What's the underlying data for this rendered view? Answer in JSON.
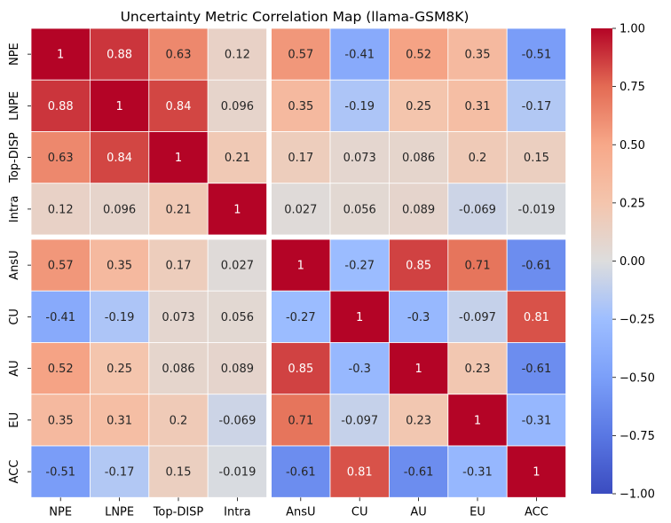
{
  "chart_data": {
    "type": "heatmap",
    "title": "Uncertainty Metric Correlation Map (llama-GSM8K)",
    "rows": [
      "NPE",
      "LNPE",
      "Top-DISP",
      "Intra",
      "AnsU",
      "CU",
      "AU",
      "EU",
      "ACC"
    ],
    "cols": [
      "NPE",
      "LNPE",
      "Top-DISP",
      "Intra",
      "AnsU",
      "CU",
      "AU",
      "EU",
      "ACC"
    ],
    "values": [
      [
        1,
        0.88,
        0.63,
        0.12,
        0.57,
        -0.41,
        0.52,
        0.35,
        -0.51
      ],
      [
        0.88,
        1,
        0.84,
        0.096,
        0.35,
        -0.19,
        0.25,
        0.31,
        -0.17
      ],
      [
        0.63,
        0.84,
        1,
        0.21,
        0.17,
        0.073,
        0.086,
        0.2,
        0.15
      ],
      [
        0.12,
        0.096,
        0.21,
        1,
        0.027,
        0.056,
        0.089,
        -0.069,
        -0.019
      ],
      [
        0.57,
        0.35,
        0.17,
        0.027,
        1,
        -0.27,
        0.85,
        0.71,
        -0.61
      ],
      [
        -0.41,
        -0.19,
        0.073,
        0.056,
        -0.27,
        1,
        -0.3,
        -0.097,
        0.81
      ],
      [
        0.52,
        0.25,
        0.086,
        0.089,
        0.85,
        -0.3,
        1,
        0.23,
        -0.61
      ],
      [
        0.35,
        0.31,
        0.2,
        -0.069,
        0.71,
        -0.097,
        0.23,
        1,
        -0.31
      ],
      [
        -0.51,
        -0.17,
        0.15,
        -0.019,
        -0.61,
        0.81,
        -0.61,
        -0.31,
        1
      ]
    ],
    "labels": [
      [
        "1",
        "0.88",
        "0.63",
        "0.12",
        "0.57",
        "-0.41",
        "0.52",
        "0.35",
        "-0.51"
      ],
      [
        "0.88",
        "1",
        "0.84",
        "0.096",
        "0.35",
        "-0.19",
        "0.25",
        "0.31",
        "-0.17"
      ],
      [
        "0.63",
        "0.84",
        "1",
        "0.21",
        "0.17",
        "0.073",
        "0.086",
        "0.2",
        "0.15"
      ],
      [
        "0.12",
        "0.096",
        "0.21",
        "1",
        "0.027",
        "0.056",
        "0.089",
        "-0.069",
        "-0.019"
      ],
      [
        "0.57",
        "0.35",
        "0.17",
        "0.027",
        "1",
        "-0.27",
        "0.85",
        "0.71",
        "-0.61"
      ],
      [
        "-0.41",
        "-0.19",
        "0.073",
        "0.056",
        "-0.27",
        "1",
        "-0.3",
        "-0.097",
        "0.81"
      ],
      [
        "0.52",
        "0.25",
        "0.086",
        "0.089",
        "0.85",
        "-0.3",
        "1",
        "0.23",
        "-0.61"
      ],
      [
        "0.35",
        "0.31",
        "0.2",
        "-0.069",
        "0.71",
        "-0.097",
        "0.23",
        "1",
        "-0.31"
      ],
      [
        "-0.51",
        "-0.17",
        "0.15",
        "-0.019",
        "-0.61",
        "0.81",
        "-0.61",
        "-0.31",
        "1"
      ]
    ],
    "vmin": -1,
    "vmax": 1,
    "colormap": "coolwarm",
    "group_split": {
      "after_row": 4,
      "after_col": 4
    },
    "colorbar": {
      "ticks": [
        1,
        0.75,
        0.5,
        0.25,
        0,
        -0.25,
        -0.5,
        -0.75,
        -1
      ],
      "tick_labels": [
        "1.00",
        "0.75",
        "0.50",
        "0.25",
        "0.00",
        "−0.25",
        "−0.50",
        "−0.75",
        "−1.00"
      ]
    },
    "grid": false,
    "colors": {
      "min": "#3b4cc0",
      "mid": "#dddddd",
      "max": "#b40426"
    }
  }
}
